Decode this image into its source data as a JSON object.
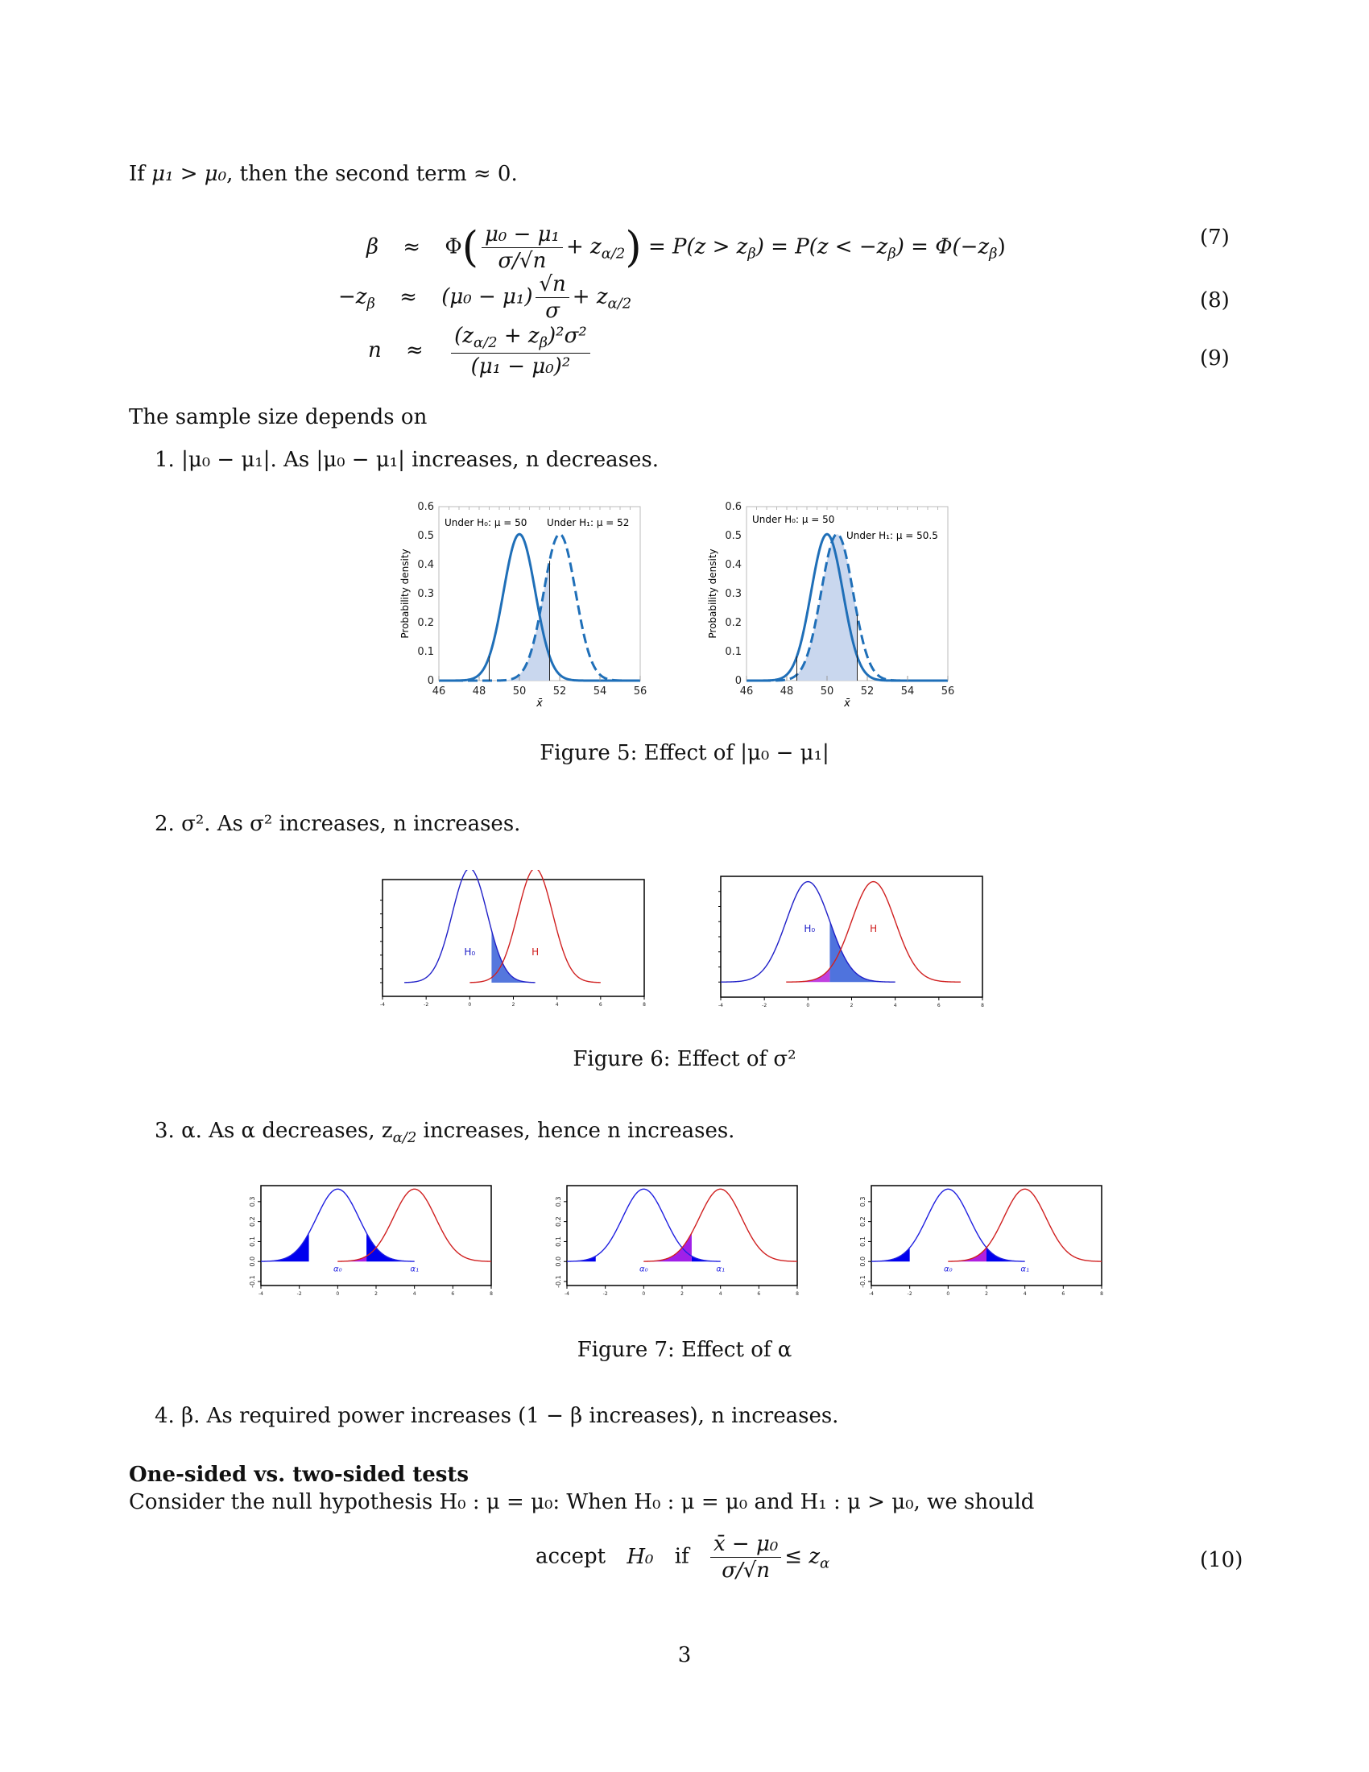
{
  "intro": {
    "text_a": "If ",
    "mu1": "μ₁ > μ₀",
    "text_b": ", then the second term ≈ 0."
  },
  "equations": {
    "eq7": {
      "lhs": "β",
      "rel": "≈",
      "phi": "Φ",
      "num": "μ₀ − μ₁",
      "den": "σ/√n",
      "plus": "+ z",
      "sub": "α/2",
      "rest": "= P(z > z",
      "b1": "β",
      "rest2": ") = P(z < −z",
      "b2": "β",
      "rest3": ") = Φ(−z",
      "b3": "β",
      "close": ")",
      "number": "(7)"
    },
    "eq8": {
      "lhs": "−z",
      "lhs_sub": "β",
      "rel": "≈",
      "a": "(μ₀ − μ₁)",
      "num": "√n",
      "den": "σ",
      "plus": "+ z",
      "sub": "α/2",
      "number": "(8)"
    },
    "eq9": {
      "lhs": "n",
      "rel": "≈",
      "num": "(z",
      "num_sub": "α/2",
      "num_b": " + z",
      "num_sub2": "β",
      "num_c": ")²σ²",
      "den": "(μ₁ − μ₀)²",
      "number": "(9)"
    },
    "eq10": {
      "accept": "accept",
      "h0": "H₀",
      "if": "if",
      "num": "x̄ − μ₀",
      "den": "σ/√n",
      "le": "≤ z",
      "sub": "α",
      "number": "(10)"
    }
  },
  "sample_size_intro": "The sample size depends on",
  "list": [
    {
      "marker": "1.",
      "text": "|μ₀ − μ₁|. As |μ₀ − μ₁| increases, n decreases."
    },
    {
      "marker": "2.",
      "text": "σ². As σ² increases, n increases."
    },
    {
      "marker": "3.",
      "text": "α. As α decreases, z_α/2 increases, hence n increases.",
      "pre": "α. As α decreases, z",
      "sub": "α/2",
      "post": " increases, hence n increases."
    },
    {
      "marker": "4.",
      "text": "β. As required power increases (1 − β increases), n increases."
    }
  ],
  "captions": {
    "fig5": "Figure 5: Effect of |μ₀ − μ₁|",
    "fig6": "Figure 6: Effect of σ²",
    "fig7": "Figure 7: Effect of α"
  },
  "section": {
    "heading": "One-sided vs. two-sided tests",
    "text": "Consider the null hypothesis H₀ : μ = μ₀: When H₀ : μ = μ₀ and H₁ : μ > μ₀, we should"
  },
  "page_number": "3",
  "chart_data": [
    {
      "id": "fig5a",
      "type": "line",
      "ylabel": "Probability density",
      "xlabel": "x̄",
      "xlim": [
        46,
        56
      ],
      "ylim": [
        0,
        0.6
      ],
      "xticks": [
        46,
        48,
        50,
        52,
        54,
        56
      ],
      "yticks": [
        0,
        0.1,
        0.2,
        0.3,
        0.4,
        0.5,
        0.6
      ],
      "ytick_labels": [
        "0",
        "0.1",
        "0.2",
        "0.3",
        "0.4",
        "0.5",
        "0.6"
      ],
      "series": [
        {
          "name": "Under H₀: μ = 50",
          "mean": 50,
          "sd": 0.79,
          "style": "solid",
          "color": "#1f6fb8"
        },
        {
          "name": "Under H₁: μ = 52",
          "mean": 52,
          "sd": 0.79,
          "style": "dashed",
          "color": "#1f6fb8"
        }
      ],
      "critical_values": [
        48.5,
        51.5
      ],
      "shaded": {
        "series": 1,
        "from": 48.5,
        "to": 51.5,
        "color": "#c9d7ee"
      }
    },
    {
      "id": "fig5b",
      "type": "line",
      "ylabel": "Probability density",
      "xlabel": "x̄",
      "xlim": [
        46,
        56
      ],
      "ylim": [
        0,
        0.6
      ],
      "xticks": [
        46,
        48,
        50,
        52,
        54,
        56
      ],
      "yticks": [
        0,
        0.1,
        0.2,
        0.3,
        0.4,
        0.5,
        0.6
      ],
      "ytick_labels": [
        "0",
        "0.1",
        "0.2",
        "0.3",
        "0.4",
        "0.5",
        "0.6"
      ],
      "series": [
        {
          "name": "Under H₀: μ = 50",
          "mean": 50,
          "sd": 0.79,
          "style": "solid",
          "color": "#1f6fb8"
        },
        {
          "name": "Under H₁: μ = 50.5",
          "mean": 50.5,
          "sd": 0.79,
          "style": "dashed",
          "color": "#1f6fb8"
        }
      ],
      "critical_values": [
        48.5,
        51.5
      ],
      "shaded": {
        "series": 1,
        "from": 48.5,
        "to": 51.5,
        "color": "#c9d7ee"
      }
    },
    {
      "id": "fig6a",
      "type": "line",
      "xlim": [
        -4,
        8
      ],
      "ylim": [
        -0.06,
        0.45
      ],
      "xticks": [
        -4,
        -2,
        0,
        2,
        4,
        6,
        8
      ],
      "series": [
        {
          "name": "H₀",
          "mean": 0,
          "sd": 0.8,
          "from": -3,
          "to": 3,
          "color": "#2020c8"
        },
        {
          "name": "H",
          "mean": 3,
          "sd": 0.8,
          "from": 0,
          "to": 6,
          "color": "#d02020"
        }
      ],
      "fills": [
        {
          "series": 0,
          "from": 1,
          "to": 3,
          "color": "#5577dd"
        }
      ]
    },
    {
      "id": "fig6b",
      "type": "line",
      "xlim": [
        -4,
        8
      ],
      "ylim": [
        -0.06,
        0.42
      ],
      "xticks": [
        -4,
        -2,
        0,
        2,
        4,
        6,
        8
      ],
      "series": [
        {
          "name": "H₀",
          "mean": 0,
          "sd": 1.0,
          "from": -4,
          "to": 4,
          "color": "#2020c8"
        },
        {
          "name": "H",
          "mean": 3,
          "sd": 1.0,
          "from": -1,
          "to": 7,
          "color": "#d02020"
        }
      ],
      "fills": [
        {
          "series": 0,
          "from": 1,
          "to": 4,
          "color": "#4f73dd"
        },
        {
          "series": 1,
          "from": -1,
          "to": 1,
          "color": "#c040e0"
        }
      ]
    },
    {
      "id": "fig7a",
      "type": "line",
      "xlim": [
        -4,
        8
      ],
      "ylim": [
        -0.12,
        0.38
      ],
      "xticks": [
        -4,
        -2,
        0,
        2,
        4,
        6,
        8
      ],
      "yticks": [
        -0.1,
        0.0,
        0.1,
        0.2,
        0.3
      ],
      "ytick_labels": [
        "-0.1",
        "0.0",
        "0.1",
        "0.2",
        "0.3"
      ],
      "series": [
        {
          "name": "α₀",
          "mean": 0,
          "sd": 1.1,
          "from": -4,
          "to": 4,
          "color": "#2020e0"
        },
        {
          "name": "α₁",
          "mean": 4,
          "sd": 1.1,
          "from": 0,
          "to": 8,
          "color": "#d02020"
        }
      ],
      "fills": [
        {
          "series": 0,
          "from": -4,
          "to": -1.5,
          "color": "#0000ee"
        },
        {
          "series": 0,
          "from": 1.5,
          "to": 4,
          "color": "#0000ee"
        },
        {
          "series": 1,
          "from": 0,
          "to": 1.5,
          "color": "#b020e0"
        }
      ]
    },
    {
      "id": "fig7b",
      "type": "line",
      "xlim": [
        -4,
        8
      ],
      "ylim": [
        -0.12,
        0.38
      ],
      "xticks": [
        -4,
        -2,
        0,
        2,
        4,
        6,
        8
      ],
      "yticks": [
        -0.1,
        0.0,
        0.1,
        0.2,
        0.3
      ],
      "ytick_labels": [
        "-0.1",
        "0.0",
        "0.1",
        "0.2",
        "0.3"
      ],
      "series": [
        {
          "name": "α₀",
          "mean": 0,
          "sd": 1.1,
          "from": -4,
          "to": 4,
          "color": "#2020e0"
        },
        {
          "name": "α₁",
          "mean": 4,
          "sd": 1.1,
          "from": 0,
          "to": 8,
          "color": "#d02020"
        }
      ],
      "fills": [
        {
          "series": 0,
          "from": -4,
          "to": -2.5,
          "color": "#0000ee"
        },
        {
          "series": 0,
          "from": 2.5,
          "to": 4,
          "color": "#0000ee"
        },
        {
          "series": 1,
          "from": 0,
          "to": 2.5,
          "color": "#a020e8"
        }
      ]
    },
    {
      "id": "fig7c",
      "type": "line",
      "xlim": [
        -4,
        8
      ],
      "ylim": [
        -0.12,
        0.38
      ],
      "xticks": [
        -4,
        -2,
        0,
        2,
        4,
        6,
        8
      ],
      "yticks": [
        -0.1,
        0.0,
        0.1,
        0.2,
        0.3
      ],
      "ytick_labels": [
        "-0.1",
        "0.0",
        "0.1",
        "0.2",
        "0.3"
      ],
      "series": [
        {
          "name": "α₀",
          "mean": 0,
          "sd": 1.1,
          "from": -4,
          "to": 4,
          "color": "#2020e0"
        },
        {
          "name": "α₁",
          "mean": 4,
          "sd": 1.1,
          "from": 0,
          "to": 8,
          "color": "#d02020"
        }
      ],
      "fills": [
        {
          "series": 0,
          "from": -4,
          "to": -2,
          "color": "#0000ee"
        },
        {
          "series": 0,
          "from": 2,
          "to": 4,
          "color": "#0000ee"
        },
        {
          "series": 1,
          "from": 0,
          "to": 2,
          "color": "#b020e0"
        }
      ]
    }
  ]
}
